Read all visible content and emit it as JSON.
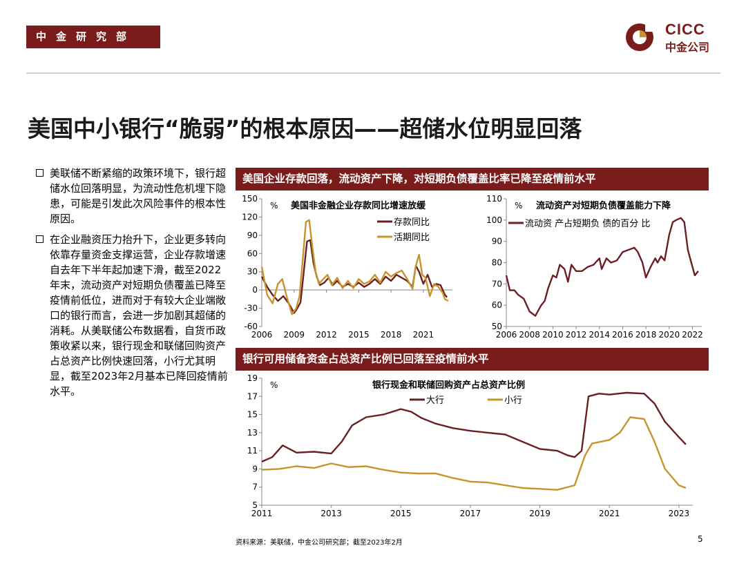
{
  "header": {
    "dept": "中金研究部",
    "logo_en": "CICC",
    "logo_cn": "中金公司"
  },
  "title": "美国中小银行“脆弱”的根本原因——超储水位明显回落",
  "bullets": [
    "美联储不断紧缩的政策环境下，银行超储水位回落明显，为流动性危机埋下隐患，可能是引发此次风险事件的根本性原因。",
    "在企业融资压力抬升下，企业更多转向依靠存量资金支撑运营，企业存款增速自去年下半年起加速下滑，截至2022年末，流动资产对短期负债覆盖已降至疫情前低位，进而对于有较大企业端敞口的银行而言，会进一步加剧其超储的消耗。从美联储公布数据看，自货币政策收紧以来，银行现金和联储回购资产占总资产比例快速回落，小行尤其明显，截至2023年2月基本已降回疫情前水平。"
  ],
  "banners": {
    "top": "美国企业存款回落，流动资产下降，对短期负债覆盖比率已降至疫情前水平",
    "bottom": "银行可用储备资金占总资产比例已回落至疫情前水平"
  },
  "footer": {
    "source": "资料来源：美联储，中金公司研究部；截至2023年2月",
    "page": "5"
  },
  "colors": {
    "maroon": "#6b1e24",
    "gold": "#c9932c",
    "banner": "#7b1c1c"
  },
  "chart_data": [
    {
      "type": "line",
      "title": "美国非金融企业存款同比增速放缓",
      "unit": "%",
      "ylim": [
        -60,
        150
      ],
      "yticks": [
        "150",
        "120",
        "90",
        "60",
        "30",
        "0",
        "-30",
        "-60"
      ],
      "xlim": [
        2006,
        2023.7
      ],
      "xticks": [
        "2006",
        "2009",
        "2012",
        "2015",
        "2018",
        "2021"
      ],
      "series": [
        {
          "name": "存款同比",
          "color": "#6b1e24",
          "points": [
            [
              2006,
              22
            ],
            [
              2006.5,
              5
            ],
            [
              2007,
              -8
            ],
            [
              2007.5,
              -18
            ],
            [
              2008,
              -10
            ],
            [
              2008.5,
              -22
            ],
            [
              2009,
              -38
            ],
            [
              2009.3,
              -30
            ],
            [
              2009.6,
              -20
            ],
            [
              2009.9,
              30
            ],
            [
              2010.2,
              80
            ],
            [
              2010.5,
              82
            ],
            [
              2010.8,
              45
            ],
            [
              2011.1,
              22
            ],
            [
              2011.4,
              8
            ],
            [
              2011.8,
              12
            ],
            [
              2012.2,
              20
            ],
            [
              2012.6,
              8
            ],
            [
              2013,
              15
            ],
            [
              2013.5,
              5
            ],
            [
              2014,
              10
            ],
            [
              2014.5,
              5
            ],
            [
              2015,
              12
            ],
            [
              2015.5,
              5
            ],
            [
              2016,
              10
            ],
            [
              2016.5,
              18
            ],
            [
              2017,
              10
            ],
            [
              2017.5,
              22
            ],
            [
              2018,
              15
            ],
            [
              2018.5,
              25
            ],
            [
              2019,
              20
            ],
            [
              2019.5,
              15
            ],
            [
              2020,
              5
            ],
            [
              2020.3,
              40
            ],
            [
              2020.6,
              30
            ],
            [
              2021,
              10
            ],
            [
              2021.4,
              25
            ],
            [
              2021.8,
              5
            ],
            [
              2022.2,
              10
            ],
            [
              2022.6,
              8
            ],
            [
              2023,
              -8
            ],
            [
              2023.2,
              -12
            ]
          ]
        },
        {
          "name": "活期同比",
          "color": "#c9932c",
          "points": [
            [
              2006,
              38
            ],
            [
              2006.5,
              -8
            ],
            [
              2007,
              -22
            ],
            [
              2007.5,
              10
            ],
            [
              2007.9,
              18
            ],
            [
              2008.3,
              -10
            ],
            [
              2008.8,
              -40
            ],
            [
              2009.2,
              -30
            ],
            [
              2009.5,
              -10
            ],
            [
              2009.8,
              50
            ],
            [
              2010.1,
              112
            ],
            [
              2010.4,
              115
            ],
            [
              2010.7,
              70
            ],
            [
              2011,
              30
            ],
            [
              2011.3,
              10
            ],
            [
              2011.7,
              18
            ],
            [
              2012.1,
              25
            ],
            [
              2012.5,
              8
            ],
            [
              2013,
              20
            ],
            [
              2013.5,
              3
            ],
            [
              2014,
              15
            ],
            [
              2014.5,
              3
            ],
            [
              2015,
              18
            ],
            [
              2015.5,
              10
            ],
            [
              2016,
              14
            ],
            [
              2016.5,
              25
            ],
            [
              2017,
              12
            ],
            [
              2017.5,
              30
            ],
            [
              2018,
              22
            ],
            [
              2018.5,
              28
            ],
            [
              2019,
              32
            ],
            [
              2019.5,
              18
            ],
            [
              2020,
              2
            ],
            [
              2020.3,
              40
            ],
            [
              2020.6,
              58
            ],
            [
              2020.9,
              25
            ],
            [
              2021.2,
              20
            ],
            [
              2021.6,
              -10
            ],
            [
              2022,
              10
            ],
            [
              2022.4,
              5
            ],
            [
              2022.8,
              -5
            ],
            [
              2023,
              -15
            ],
            [
              2023.3,
              -18
            ]
          ]
        }
      ]
    },
    {
      "type": "line",
      "title": "流动资产对短期负债覆盖能力下降",
      "unit": "%",
      "ylim": [
        50,
        110
      ],
      "yticks": [
        "110",
        "100",
        "90",
        "80",
        "70",
        "60",
        "50"
      ],
      "xlim": [
        2006,
        2022.8
      ],
      "xticks": [
        "2006",
        "2008",
        "2010",
        "2012",
        "2014",
        "2016",
        "2018",
        "2020",
        "2022"
      ],
      "series": [
        {
          "name": "流动资 产占短期负 债的百分 比",
          "color": "#6b1e24",
          "points": [
            [
              2006,
              74
            ],
            [
              2006.3,
              67
            ],
            [
              2006.7,
              67
            ],
            [
              2007,
              65
            ],
            [
              2007.5,
              63
            ],
            [
              2008,
              57
            ],
            [
              2008.5,
              55
            ],
            [
              2009,
              60
            ],
            [
              2009.3,
              62
            ],
            [
              2009.6,
              68
            ],
            [
              2010,
              74
            ],
            [
              2010.3,
              73
            ],
            [
              2010.6,
              79
            ],
            [
              2011,
              77
            ],
            [
              2011.3,
              71
            ],
            [
              2011.6,
              79
            ],
            [
              2012,
              76
            ],
            [
              2012.5,
              76
            ],
            [
              2013,
              78
            ],
            [
              2013.5,
              79
            ],
            [
              2014,
              82
            ],
            [
              2014.2,
              77
            ],
            [
              2014.6,
              82
            ],
            [
              2015,
              80
            ],
            [
              2015.5,
              81
            ],
            [
              2016,
              85
            ],
            [
              2016.5,
              86
            ],
            [
              2017,
              87
            ],
            [
              2017.3,
              85
            ],
            [
              2017.7,
              80
            ],
            [
              2018,
              73
            ],
            [
              2018.4,
              78
            ],
            [
              2018.8,
              82
            ],
            [
              2019,
              80
            ],
            [
              2019.3,
              83
            ],
            [
              2019.6,
              81
            ],
            [
              2020,
              93
            ],
            [
              2020.3,
              99
            ],
            [
              2020.6,
              100
            ],
            [
              2021,
              101
            ],
            [
              2021.3,
              99
            ],
            [
              2021.6,
              86
            ],
            [
              2021.9,
              80
            ],
            [
              2022.2,
              74
            ],
            [
              2022.5,
              76
            ]
          ]
        }
      ]
    },
    {
      "type": "line",
      "title": "银行现金和联储回购资产占总资产比例",
      "unit": "%",
      "ylim": [
        5,
        19
      ],
      "yticks": [
        "19",
        "17",
        "15",
        "13",
        "11",
        "9",
        "7",
        "5"
      ],
      "xlim": [
        2011,
        2023.4
      ],
      "xticks": [
        "2011",
        "2013",
        "2015",
        "2017",
        "2019",
        "2021",
        "2023"
      ],
      "series": [
        {
          "name": "大行",
          "color": "#6b1e24",
          "points": [
            [
              2011,
              9.8
            ],
            [
              2011.3,
              10.3
            ],
            [
              2011.6,
              11.6
            ],
            [
              2012,
              10.8
            ],
            [
              2012.5,
              10.9
            ],
            [
              2013,
              10.7
            ],
            [
              2013.3,
              12.0
            ],
            [
              2013.6,
              13.8
            ],
            [
              2014,
              14.7
            ],
            [
              2014.5,
              15.0
            ],
            [
              2015,
              15.6
            ],
            [
              2015.3,
              15.3
            ],
            [
              2015.6,
              14.6
            ],
            [
              2016,
              14.0
            ],
            [
              2016.5,
              13.5
            ],
            [
              2017,
              13.2
            ],
            [
              2017.5,
              13.0
            ],
            [
              2018,
              12.8
            ],
            [
              2018.5,
              12.0
            ],
            [
              2019,
              11.2
            ],
            [
              2019.5,
              11.0
            ],
            [
              2019.8,
              10.5
            ],
            [
              2020,
              10.3
            ],
            [
              2020.2,
              11.0
            ],
            [
              2020.4,
              17.0
            ],
            [
              2020.7,
              17.3
            ],
            [
              2021,
              17.2
            ],
            [
              2021.5,
              17.4
            ],
            [
              2022,
              17.3
            ],
            [
              2022.3,
              16.2
            ],
            [
              2022.6,
              14.2
            ],
            [
              2023,
              12.5
            ],
            [
              2023.2,
              11.7
            ]
          ]
        },
        {
          "name": "小行",
          "color": "#c9932c",
          "points": [
            [
              2011,
              8.9
            ],
            [
              2011.5,
              9.0
            ],
            [
              2012,
              9.3
            ],
            [
              2012.5,
              9.1
            ],
            [
              2013,
              9.6
            ],
            [
              2013.5,
              9.2
            ],
            [
              2014,
              9.3
            ],
            [
              2014.5,
              8.9
            ],
            [
              2015,
              8.6
            ],
            [
              2015.5,
              8.5
            ],
            [
              2016,
              8.5
            ],
            [
              2016.5,
              8.0
            ],
            [
              2017,
              7.6
            ],
            [
              2017.5,
              7.5
            ],
            [
              2018,
              7.2
            ],
            [
              2018.5,
              6.9
            ],
            [
              2019,
              6.8
            ],
            [
              2019.5,
              6.7
            ],
            [
              2020,
              7.2
            ],
            [
              2020.3,
              10.5
            ],
            [
              2020.5,
              11.8
            ],
            [
              2021,
              12.2
            ],
            [
              2021.3,
              13.0
            ],
            [
              2021.6,
              14.7
            ],
            [
              2022,
              14.5
            ],
            [
              2022.3,
              12.0
            ],
            [
              2022.6,
              9.0
            ],
            [
              2023,
              7.2
            ],
            [
              2023.2,
              6.9
            ]
          ]
        }
      ]
    }
  ]
}
